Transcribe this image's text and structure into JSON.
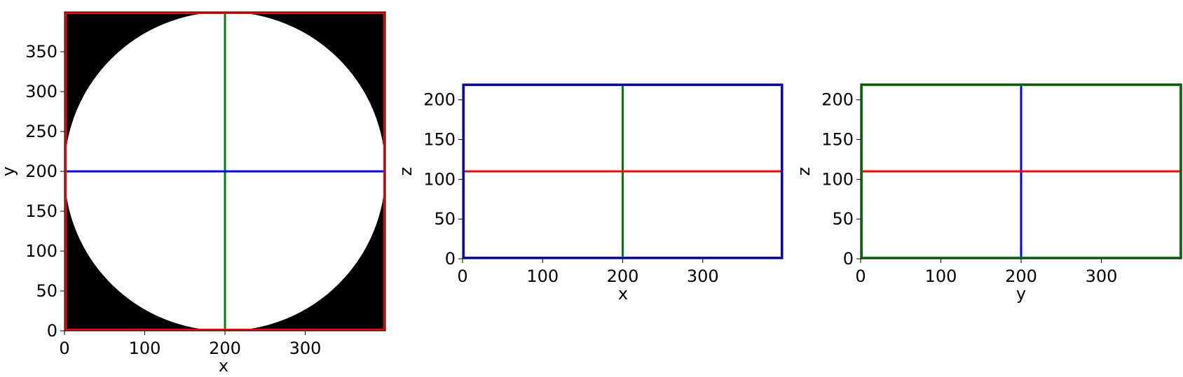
{
  "chart_data": [
    {
      "type": "heatmap",
      "title": "",
      "image_description_color": "binary",
      "image_shape": "disk",
      "disk_center": [
        200,
        200
      ],
      "disk_radius": 200,
      "background_color": "#000000",
      "foreground_color": "#ffffff",
      "frame_color": "#ff0000",
      "xlabel": "x",
      "ylabel": "y",
      "xlim": [
        0,
        400
      ],
      "ylim": [
        400,
        0
      ],
      "xticks": [
        "0",
        "100",
        "200",
        "300"
      ],
      "yticks": [
        "0",
        "50",
        "100",
        "150",
        "200",
        "250",
        "300",
        "350"
      ],
      "lines": [
        {
          "orientation": "vertical",
          "value": 200,
          "color": "#008000"
        },
        {
          "orientation": "horizontal",
          "value": 200,
          "color": "#0000ff"
        }
      ]
    },
    {
      "type": "heatmap",
      "title": "",
      "background_color": "#ffffff",
      "frame_color": "#0000ff",
      "xlabel": "x",
      "ylabel": "z",
      "xlim": [
        0,
        400
      ],
      "ylim": [
        220,
        0
      ],
      "xticks": [
        "0",
        "100",
        "200",
        "300"
      ],
      "yticks": [
        "0",
        "50",
        "100",
        "150",
        "200"
      ],
      "lines": [
        {
          "orientation": "vertical",
          "value": 200,
          "color": "#008000"
        },
        {
          "orientation": "horizontal",
          "value": 110,
          "color": "#ff0000"
        }
      ]
    },
    {
      "type": "heatmap",
      "title": "",
      "background_color": "#ffffff",
      "frame_color": "#008000",
      "xlabel": "y",
      "ylabel": "z",
      "xlim": [
        0,
        400
      ],
      "ylim": [
        220,
        0
      ],
      "xticks": [
        "0",
        "100",
        "200",
        "300"
      ],
      "yticks": [
        "0",
        "50",
        "100",
        "150",
        "200"
      ],
      "lines": [
        {
          "orientation": "vertical",
          "value": 200,
          "color": "#0000ff"
        },
        {
          "orientation": "horizontal",
          "value": 110,
          "color": "#ff0000"
        }
      ]
    }
  ]
}
